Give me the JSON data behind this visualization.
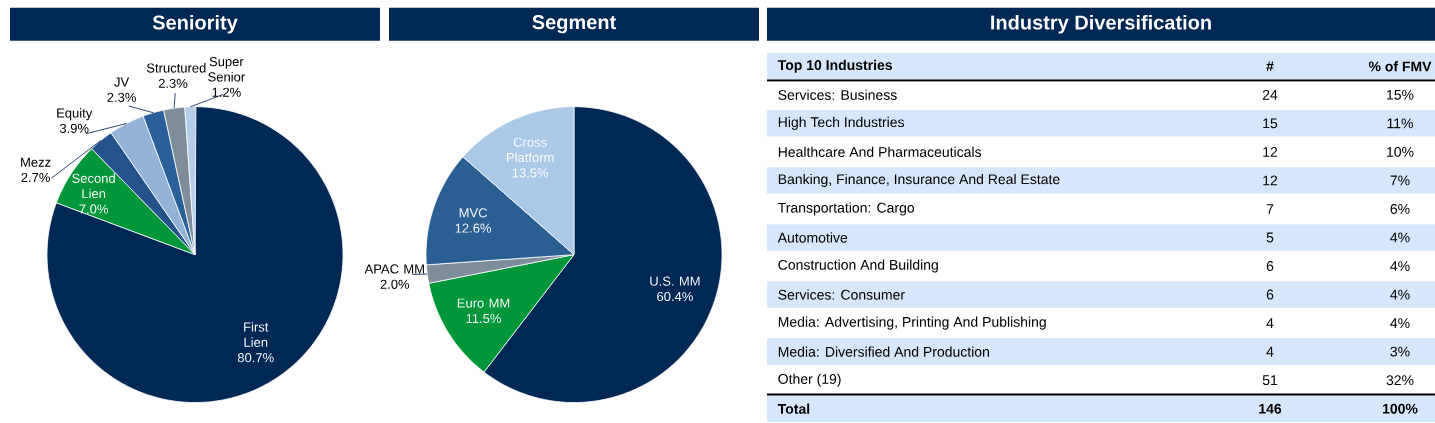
{
  "chart_data": [
    {
      "type": "pie",
      "title": "Seniority",
      "categories": [
        "First Lien",
        "Second Lien",
        "Mezz",
        "Equity",
        "JV",
        "Structured",
        "Super Senior"
      ],
      "values": [
        80.7,
        7.0,
        2.7,
        3.9,
        2.3,
        2.3,
        1.2
      ],
      "value_labels": [
        "80.7%",
        "7.0%",
        "2.7%",
        "3.9%",
        "2.3%",
        "2.3%",
        "1.2%"
      ],
      "colors": [
        "#002855",
        "#009639",
        "#24528a",
        "#95b3d7",
        "#2a6099",
        "#7f8c99",
        "#b4cde8"
      ]
    },
    {
      "type": "pie",
      "title": "Segment",
      "categories": [
        "U.S. MM",
        "Euro MM",
        "APAC MM",
        "MVC",
        "Cross Platform"
      ],
      "values": [
        60.4,
        11.5,
        2.0,
        12.6,
        13.5
      ],
      "value_labels": [
        "60.4%",
        "11.5%",
        "2.0%",
        "12.6%",
        "13.5%"
      ],
      "colors": [
        "#002855",
        "#009639",
        "#7f8c99",
        "#2a5f94",
        "#abc8e6"
      ]
    },
    {
      "type": "other",
      "title": "Industry Diversification",
      "xlabel": "Top 10 Industries",
      "categories": [
        "Services: Business",
        "High Tech Industries",
        "Healthcare And Pharmaceuticals",
        "Banking, Finance, Insurance And Real Estate",
        "Transportation: Cargo",
        "Automotive",
        "Construction And Building",
        "Services: Consumer",
        "Media: Advertising, Printing And Publishing",
        "Media: Diversified And Production",
        "Other (19)",
        "Total"
      ],
      "data_labels": true,
      "series": [
        {
          "name": "#",
          "values": [
            24,
            15,
            12,
            12,
            7,
            5,
            6,
            6,
            4,
            4,
            51,
            146
          ]
        },
        {
          "name": "% of FMV",
          "values": [
            15,
            11,
            10,
            7,
            6,
            4,
            4,
            4,
            4,
            3,
            32,
            100
          ],
          "value_labels": [
            "15%",
            "11%",
            "10%",
            "7%",
            "6%",
            "4%",
            "4%",
            "4%",
            "4%",
            "3%",
            "32%",
            "100%"
          ]
        }
      ]
    }
  ]
}
